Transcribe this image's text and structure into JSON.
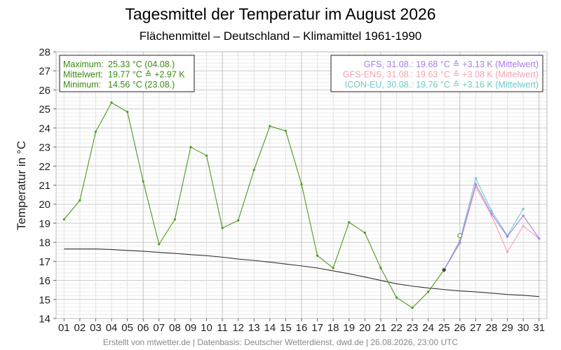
{
  "chart_data": {
    "type": "line",
    "title": "Tagesmittel der Temperatur im August 2026",
    "subtitle": "Flächenmittel – Deutschland – Klimamittel 1961-1990",
    "ylabel": "Temperatur in °C",
    "xlabel": "",
    "ylim": [
      14,
      28
    ],
    "xlim": [
      0.5,
      31.5
    ],
    "y_ticks": [
      "14",
      "15",
      "16",
      "17",
      "18",
      "19",
      "20",
      "21",
      "22",
      "23",
      "24",
      "25",
      "26",
      "27",
      "28"
    ],
    "x_ticks": [
      "01",
      "02",
      "03",
      "04",
      "05",
      "06",
      "07",
      "08",
      "09",
      "10",
      "11",
      "12",
      "13",
      "14",
      "15",
      "16",
      "17",
      "18",
      "19",
      "20",
      "21",
      "22",
      "23",
      "24",
      "25",
      "26",
      "27",
      "28",
      "29",
      "30",
      "31"
    ],
    "grid": true,
    "series": [
      {
        "key": "observed",
        "color": "#4a9a18",
        "x": [
          1,
          2,
          3,
          4,
          5,
          6,
          7,
          8,
          9,
          10,
          11,
          12,
          13,
          14,
          15,
          16,
          17,
          18,
          19,
          20,
          21,
          22,
          23,
          24,
          25
        ],
        "values": [
          19.2,
          20.2,
          23.8,
          25.33,
          24.85,
          21.2,
          17.9,
          19.2,
          23.0,
          22.55,
          18.75,
          19.15,
          21.8,
          24.1,
          23.85,
          21.05,
          17.3,
          16.65,
          19.05,
          18.5,
          16.65,
          15.1,
          14.56,
          15.4,
          16.55
        ]
      },
      {
        "key": "climate",
        "color": "#333333",
        "x": [
          1,
          2,
          3,
          4,
          5,
          6,
          7,
          8,
          9,
          10,
          11,
          12,
          13,
          14,
          15,
          16,
          17,
          18,
          19,
          20,
          21,
          22,
          23,
          24,
          25,
          26,
          27,
          28,
          29,
          30,
          31
        ],
        "values": [
          17.65,
          17.65,
          17.65,
          17.62,
          17.57,
          17.53,
          17.47,
          17.42,
          17.35,
          17.3,
          17.22,
          17.12,
          17.05,
          16.96,
          16.86,
          16.76,
          16.65,
          16.5,
          16.35,
          16.18,
          16.0,
          15.82,
          15.7,
          15.6,
          15.52,
          15.45,
          15.4,
          15.33,
          15.26,
          15.22,
          15.15
        ]
      },
      {
        "key": "gfs",
        "name": "GFS",
        "color": "#a77de8",
        "x": [
          25,
          26,
          27,
          28,
          29,
          30,
          31
        ],
        "values": [
          16.55,
          18.0,
          21.05,
          19.5,
          18.3,
          19.4,
          18.2
        ]
      },
      {
        "key": "gfs_ens",
        "name": "GFS-ENS",
        "color": "#f2a0b5",
        "x": [
          25,
          26,
          27,
          28,
          29,
          30,
          31
        ],
        "values": [
          16.55,
          17.95,
          20.9,
          19.4,
          17.5,
          18.85,
          18.2
        ]
      },
      {
        "key": "icon_eu",
        "name": "ICON-EU",
        "color": "#6fc9c9",
        "x": [
          25,
          26,
          27,
          28,
          29,
          30
        ],
        "values": [
          16.55,
          18.1,
          21.35,
          19.65,
          18.35,
          19.75
        ]
      }
    ],
    "markers": [
      {
        "x": 25,
        "y": 16.55,
        "style": "filled",
        "color": "#2f4f2f"
      },
      {
        "x": 26,
        "y": 18.35,
        "style": "hollow",
        "color": "#4a9a18"
      }
    ]
  },
  "info_left": {
    "color": "#3a8a10",
    "lines": [
      {
        "label": "Maximum:",
        "value": "25.33 °C  (04.08.)"
      },
      {
        "label": "Mittelwert:",
        "value": "19.77 °C  ≙ +2.97 K"
      },
      {
        "label": "Minimum:",
        "value": " 14.56 °C  (23.08.)"
      }
    ]
  },
  "info_right": {
    "lines": [
      {
        "text": "GFS, 31.08.: 19.68 °C  ≙ +3.13 K (Mittelwert)",
        "color": "#a77de8"
      },
      {
        "text": "GFS-ENS, 31.08.: 19.63 °C  ≙ +3.08 K (Mittelwert)",
        "color": "#f2a0b5"
      },
      {
        "text": "ICON-EU, 30.08.: 19.76 °C  ≙ +3.16 K (Mittelwert)",
        "color": "#6fc9c9"
      }
    ]
  },
  "footer": "Erstellt von mtwetter.de | Datenbasis: Deutscher Wetterdienst, dwd.de | 26.08.2026, 23:00 UTC"
}
